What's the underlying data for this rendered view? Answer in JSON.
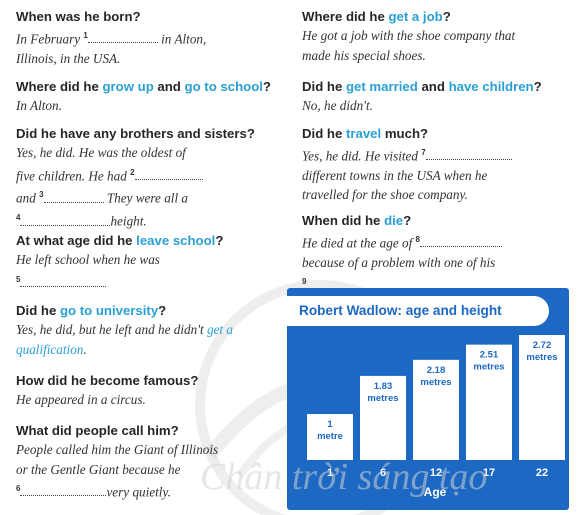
{
  "left": [
    {
      "q": [
        "When was he born?"
      ],
      "a": [
        [
          [
            "t",
            "In February "
          ],
          [
            "n",
            "1"
          ],
          [
            "b",
            70
          ],
          [
            "t",
            " in Alton,"
          ]
        ],
        [
          [
            "t",
            "Illinois, in the USA."
          ]
        ]
      ]
    },
    {
      "q": [
        "Where did he ",
        [
          "hl",
          "grow up"
        ],
        " and ",
        [
          "hl",
          "go to school"
        ],
        "?"
      ],
      "a": [
        [
          [
            "t",
            "In Alton."
          ]
        ]
      ]
    },
    {
      "q": [
        "Did he have any brothers and sisters?"
      ],
      "a": [
        [
          [
            "t",
            "Yes, he did. He was the oldest of"
          ]
        ],
        [
          [
            "t",
            "five children. He had "
          ],
          [
            "n",
            "2"
          ],
          [
            "b",
            68
          ]
        ],
        [
          [
            "t",
            "and "
          ],
          [
            "n",
            "3"
          ],
          [
            "b",
            60
          ],
          [
            "t",
            " They were all a"
          ]
        ],
        [
          [
            "n",
            "4"
          ],
          [
            "b",
            90
          ],
          [
            "t",
            "height."
          ]
        ]
      ]
    },
    {
      "q": [
        "At what age did he ",
        [
          "hl",
          "leave school"
        ],
        "?"
      ],
      "a": [
        [
          [
            "t",
            "He left school when he was"
          ]
        ],
        [
          [
            "n",
            "5"
          ],
          [
            "b",
            86
          ]
        ]
      ]
    },
    {
      "q": [
        "Did he ",
        [
          "hl",
          "go to university"
        ],
        "?"
      ],
      "a": [
        [
          [
            "t",
            "Yes, he did, but he left and he didn't "
          ],
          [
            "h",
            "get a"
          ]
        ],
        [
          [
            "h",
            "qualification"
          ],
          [
            "t",
            "."
          ]
        ]
      ]
    },
    {
      "q": [
        "How did he become famous?"
      ],
      "a": [
        [
          [
            "t",
            "He appeared in a circus."
          ]
        ]
      ]
    },
    {
      "q": [
        "What did people call him?"
      ],
      "a": [
        [
          [
            "t",
            "People called him the Giant of Illinois"
          ]
        ],
        [
          [
            "t",
            "or the Gentle Giant because he"
          ]
        ],
        [
          [
            "n",
            "6"
          ],
          [
            "b",
            86
          ],
          [
            "t",
            "very quietly."
          ]
        ]
      ]
    }
  ],
  "right": [
    {
      "q": [
        "Where did he ",
        [
          "hl",
          "get a job"
        ],
        "?"
      ],
      "a": [
        [
          [
            "t",
            "He got a job with the shoe company that"
          ]
        ],
        [
          [
            "t",
            "made his special shoes."
          ]
        ]
      ]
    },
    {
      "q": [
        "Did he ",
        [
          "hl",
          "get married"
        ],
        " and ",
        [
          "hl",
          "have children"
        ],
        "?"
      ],
      "a": [
        [
          [
            "t",
            "No, he didn't."
          ]
        ]
      ]
    },
    {
      "q": [
        "Did he ",
        [
          "hl",
          "travel"
        ],
        " much?"
      ],
      "a": [
        [
          [
            "t",
            "Yes, he did. He visited "
          ],
          [
            "n",
            "7"
          ],
          [
            "b",
            86
          ]
        ],
        [
          [
            "t",
            "different towns in the USA when he"
          ]
        ],
        [
          [
            "t",
            "travelled for the shoe company."
          ]
        ]
      ]
    },
    {
      "q": [
        "When did he ",
        [
          "hl",
          "die"
        ],
        "?"
      ],
      "a": [
        [
          [
            "t",
            "He died at the age of "
          ],
          [
            "n",
            "8"
          ],
          [
            "b",
            82
          ]
        ],
        [
          [
            "t",
            "because of a problem with one of his"
          ]
        ],
        [
          [
            "n",
            "9"
          ],
          [
            "b",
            86
          ]
        ]
      ]
    }
  ],
  "chart_data": {
    "type": "bar",
    "title": "Robert Wadlow: age and height",
    "xlabel": "Age",
    "ylabel": "",
    "categories": [
      "1",
      "6",
      "12",
      "17",
      "22"
    ],
    "values": [
      1,
      1.83,
      2.18,
      2.51,
      2.72
    ],
    "labels": [
      "1 metre",
      "1.83 metres",
      "2.18 metres",
      "2.51 metres",
      "2.72 metres"
    ],
    "ylim": [
      0,
      2.8
    ],
    "grid": false,
    "colors": {
      "panel": "#1c68c3",
      "bar": "#ffffff",
      "accent": "#2a9fd6"
    }
  },
  "watermark": "Chân trời sáng tạo"
}
